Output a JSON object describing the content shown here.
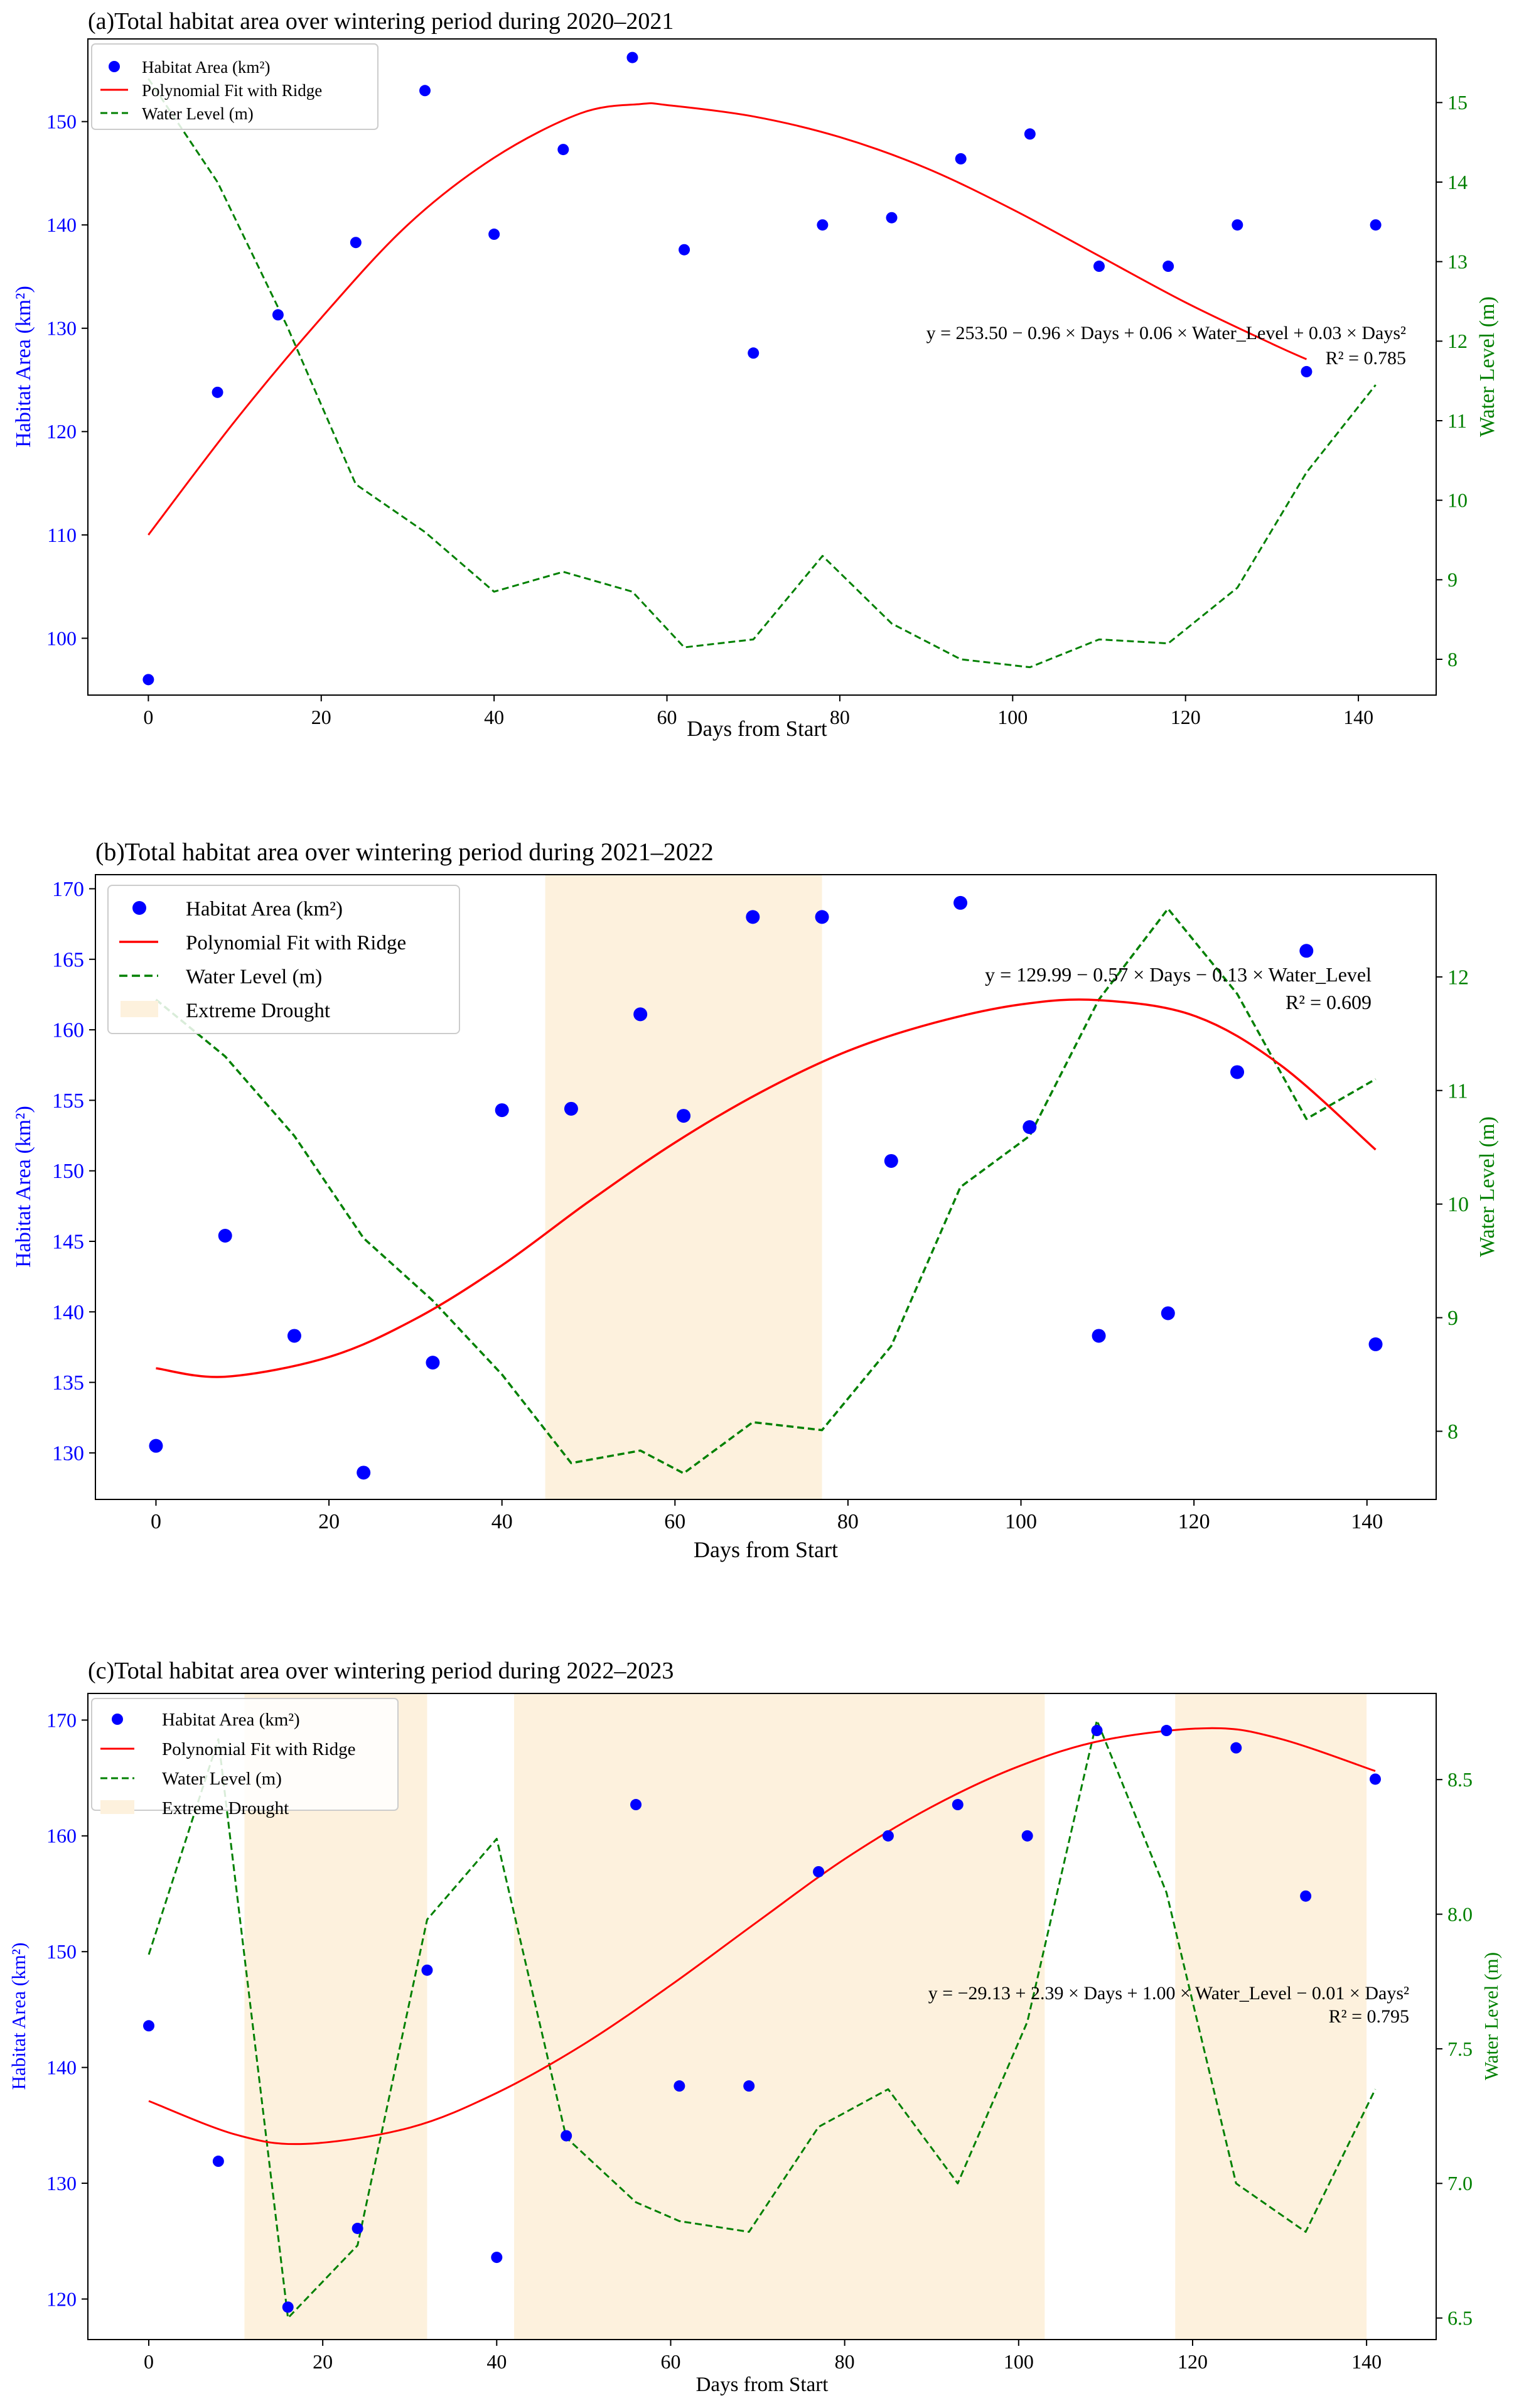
{
  "colors": {
    "scatter": "#0000ff",
    "fit": "#ff0000",
    "water": "#008000",
    "drought": "#fdf1dd",
    "axis": "#000000"
  },
  "chart_data": [
    {
      "type": "scatter",
      "title": "(a)Total habitat area over wintering period during 2020–2021",
      "xlabel": "Days from Start",
      "ylabel": "Habitat Area (km²)",
      "y2label": "Water Level (m)",
      "xlim": [
        -7,
        149
      ],
      "ylim": [
        94.5,
        158
      ],
      "y2lim": [
        7.55,
        15.8
      ],
      "xticks": [
        "0",
        "20",
        "40",
        "60",
        "80",
        "100",
        "120",
        "140"
      ],
      "yticks": [
        "100",
        "110",
        "120",
        "130",
        "140",
        "150"
      ],
      "y2ticks": [
        "8",
        "9",
        "10",
        "11",
        "12",
        "13",
        "14",
        "15"
      ],
      "legend": [
        "Habitat Area (km²)",
        "Polynomial Fit with Ridge",
        "Water Level (m)"
      ],
      "legend_position": "top-left",
      "equation": "y = 253.50 − 0.96 × Days + 0.06 × Water_Level + 0.03 × Days²",
      "r2": "R² = 0.785",
      "drought_periods": [],
      "scatter_x": [
        0,
        8,
        15,
        24,
        32,
        40,
        48,
        56,
        62,
        70,
        78,
        86,
        94,
        102,
        110,
        118,
        126,
        134,
        142
      ],
      "habitat_area": [
        96,
        123.8,
        131.3,
        138.3,
        153,
        139.1,
        147.3,
        156.2,
        137.6,
        127.6,
        140,
        140.7,
        146.4,
        148.8,
        136,
        136,
        140,
        125.8,
        140
      ],
      "fit_x": [
        0,
        10,
        20,
        30,
        40,
        50,
        57,
        60,
        70,
        80,
        90,
        100,
        110,
        120,
        130,
        134
      ],
      "fit_y": [
        110,
        121,
        131,
        140,
        146.5,
        150.8,
        151.7,
        151.6,
        150.5,
        148.5,
        145.5,
        141.5,
        137,
        132.5,
        128.5,
        127
      ],
      "water_x": [
        0,
        8,
        16,
        24,
        32,
        40,
        48,
        56,
        62,
        70,
        78,
        86,
        94,
        102,
        110,
        118,
        126,
        134,
        142
      ],
      "water_level": [
        15.3,
        14,
        12.2,
        10.2,
        9.6,
        8.85,
        9.1,
        8.85,
        8.15,
        8.25,
        9.3,
        8.45,
        8,
        7.9,
        8.25,
        8.2,
        8.9,
        10.35,
        11.45
      ]
    },
    {
      "type": "scatter",
      "title": "(b)Total habitat area over wintering period during 2021–2022",
      "xlabel": "Days from Start",
      "ylabel": "Habitat Area (km²)",
      "y2label": "Water Level (m)",
      "xlim": [
        -7,
        148
      ],
      "ylim": [
        126.7,
        171
      ],
      "y2lim": [
        7.4,
        12.9
      ],
      "xticks": [
        "0",
        "20",
        "40",
        "60",
        "80",
        "100",
        "120",
        "140"
      ],
      "yticks": [
        "130",
        "135",
        "140",
        "145",
        "150",
        "155",
        "160",
        "165",
        "170"
      ],
      "y2ticks": [
        "8",
        "9",
        "10",
        "11",
        "12"
      ],
      "legend": [
        "Habitat Area (km²)",
        "Polynomial Fit with Ridge",
        "Water Level (m)",
        "Extreme Drought"
      ],
      "legend_position": "top-left",
      "equation": "y = 129.99 − 0.57 × Days − 0.13 × Water_Level",
      "r2": "R² = 0.609",
      "drought_periods": [
        [
          45,
          77
        ]
      ],
      "scatter_x": [
        0,
        8,
        16,
        24,
        32,
        40,
        48,
        56,
        61,
        69,
        77,
        85,
        93,
        101,
        109,
        117,
        125,
        133,
        141
      ],
      "habitat_area": [
        130.5,
        145.4,
        138.3,
        128.6,
        136.4,
        154.3,
        154.4,
        161.1,
        153.9,
        168,
        168,
        150.7,
        169,
        153.1,
        138.3,
        139.9,
        157,
        165.6,
        137.7
      ],
      "fit_x": [
        0,
        8,
        20,
        30,
        40,
        50,
        60,
        70,
        80,
        90,
        100,
        109,
        120,
        130,
        141
      ],
      "fit_y": [
        136,
        135.4,
        136.8,
        139.5,
        143.3,
        147.8,
        152,
        155.6,
        158.5,
        160.5,
        161.8,
        162.1,
        161,
        157.5,
        151.5
      ],
      "water_x": [
        0,
        8,
        16,
        24,
        32,
        40,
        48,
        56,
        61,
        69,
        77,
        85,
        93,
        101,
        109,
        117,
        125,
        133,
        141
      ],
      "water_level": [
        11.8,
        11.3,
        10.6,
        9.7,
        9.15,
        8.5,
        7.72,
        7.83,
        7.63,
        8.08,
        8.01,
        8.75,
        10.15,
        10.6,
        11.8,
        12.6,
        11.85,
        10.75,
        11.1
      ]
    },
    {
      "type": "scatter",
      "title": "(c)Total habitat area over wintering period during 2022–2023",
      "xlabel": "Days from Start",
      "ylabel": "Habitat Area (km²)",
      "y2label": "Water Level (m)",
      "xlim": [
        -7,
        148
      ],
      "ylim": [
        116.5,
        172.3
      ],
      "y2lim": [
        6.42,
        8.82
      ],
      "xticks": [
        "0",
        "20",
        "40",
        "60",
        "80",
        "100",
        "120",
        "140"
      ],
      "yticks": [
        "120",
        "130",
        "140",
        "150",
        "160",
        "170"
      ],
      "y2ticks": [
        "6.5",
        "7.0",
        "7.5",
        "8.0",
        "8.5"
      ],
      "legend": [
        "Habitat Area (km²)",
        "Polynomial Fit with Ridge",
        "Water Level (m)",
        "Extreme Drought"
      ],
      "legend_position": "top-left",
      "equation": "y = −29.13 + 2.39 × Days + 1.00 × Water_Level − 0.01 × Days²",
      "r2": "R² = 0.795",
      "drought_periods": [
        [
          11,
          32
        ],
        [
          42,
          103
        ],
        [
          118,
          140
        ]
      ],
      "scatter_x": [
        0,
        8,
        16,
        24,
        32,
        40,
        48,
        56,
        61,
        69,
        77,
        85,
        93,
        101,
        109,
        117,
        125,
        133,
        141
      ],
      "habitat_area": [
        143.6,
        131.9,
        119.3,
        126.1,
        148.4,
        123.6,
        134.1,
        162.7,
        138.4,
        138.4,
        156.9,
        160,
        162.7,
        160,
        169.1,
        169.1,
        167.6,
        154.8,
        164.9
      ],
      "fit_x": [
        0,
        10,
        18,
        30,
        40,
        50,
        60,
        70,
        80,
        90,
        100,
        110,
        122,
        130,
        141
      ],
      "fit_y": [
        137.1,
        134.2,
        133.4,
        134.8,
        137.8,
        142,
        147.1,
        152.6,
        158,
        162.5,
        166,
        168.3,
        169.3,
        168.4,
        165.6
      ],
      "water_x": [
        0,
        8,
        16,
        24,
        32,
        40,
        48,
        56,
        61,
        69,
        77,
        85,
        93,
        101,
        109,
        117,
        125,
        133,
        141
      ],
      "water_level": [
        7.85,
        8.65,
        6.5,
        6.77,
        7.98,
        8.28,
        7.17,
        6.93,
        6.86,
        6.82,
        7.21,
        7.35,
        7.0,
        7.6,
        8.72,
        8.08,
        7.0,
        6.82,
        7.35
      ]
    }
  ]
}
